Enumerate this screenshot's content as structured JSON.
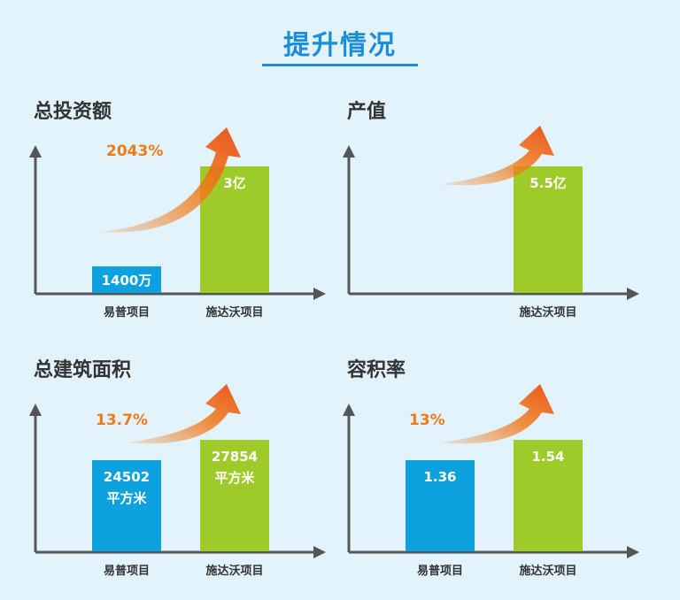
{
  "page": {
    "title": "提升情况"
  },
  "colors": {
    "old": "#0ea1e0",
    "new": "#9fcb2a",
    "arrow": "#f07a1a",
    "axis": "#555555"
  },
  "chart_data": [
    {
      "type": "bar",
      "title": "总投资额",
      "categories": [
        "易普项目",
        "施达沃项目"
      ],
      "values": [
        1400,
        30000
      ],
      "value_labels": [
        [
          "1400万"
        ],
        [
          "3亿"
        ]
      ],
      "increase_label": "2043%"
    },
    {
      "type": "bar",
      "title": "产值",
      "categories": [
        "",
        "施达沃项目"
      ],
      "values": [
        0,
        5.5
      ],
      "value_labels": [
        [],
        [
          "5.5亿"
        ]
      ],
      "increase_label": ""
    },
    {
      "type": "bar",
      "title": "总建筑面积",
      "categories": [
        "易普项目",
        "施达沃项目"
      ],
      "values": [
        24502,
        27854
      ],
      "value_labels": [
        [
          "24502",
          "平方米"
        ],
        [
          "27854",
          "平方米"
        ]
      ],
      "increase_label": "13.7%"
    },
    {
      "type": "bar",
      "title": "容积率",
      "categories": [
        "易普项目",
        "施达沃项目"
      ],
      "values": [
        1.36,
        1.54
      ],
      "value_labels": [
        [
          "1.36"
        ],
        [
          "1.54"
        ]
      ],
      "increase_label": "13%"
    }
  ]
}
